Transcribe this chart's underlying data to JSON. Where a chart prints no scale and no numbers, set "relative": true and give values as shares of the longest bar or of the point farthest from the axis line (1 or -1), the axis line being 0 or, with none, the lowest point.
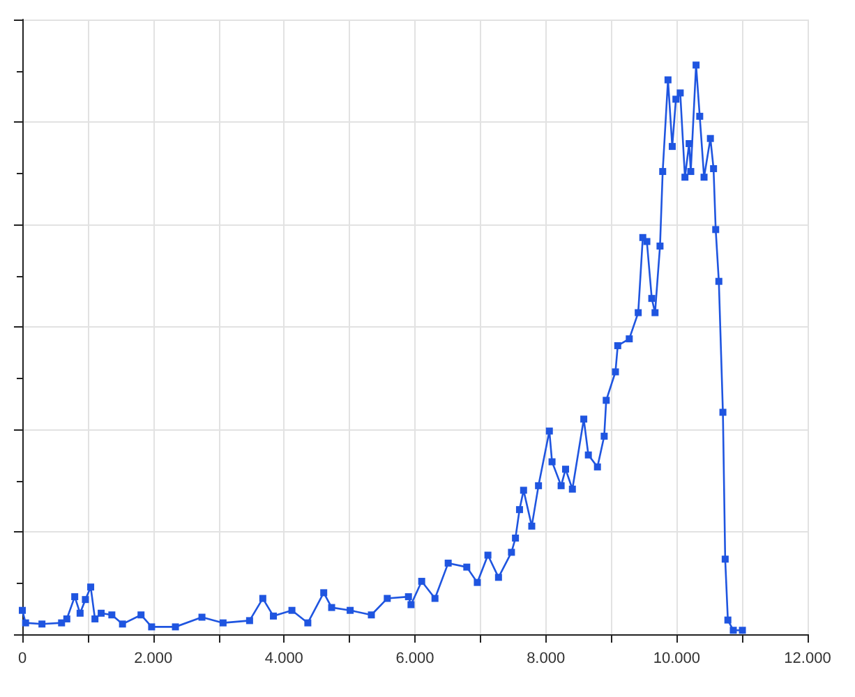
{
  "chart_data": {
    "type": "line",
    "relative": true,
    "marker": "square",
    "grid": true,
    "tick_labels": "x",
    "xlim": [
      0,
      12000
    ],
    "xticks": [
      {
        "value": 0,
        "label": "0"
      },
      {
        "value": 1000,
        "label": null
      },
      {
        "value": 2000,
        "label": "2.000"
      },
      {
        "value": 3000,
        "label": null
      },
      {
        "value": 4000,
        "label": "4.000"
      },
      {
        "value": 5000,
        "label": null
      },
      {
        "value": 6000,
        "label": "6.000"
      },
      {
        "value": 7000,
        "label": null
      },
      {
        "value": 8000,
        "label": "8.000"
      },
      {
        "value": 9000,
        "label": null
      },
      {
        "value": 10000,
        "label": "10.000"
      },
      {
        "value": 11000,
        "label": null
      },
      {
        "value": 12000,
        "label": "12.000"
      }
    ],
    "series": [
      {
        "color": "#1f55e0",
        "x": [
          0,
          50,
          300,
          600,
          680,
          801,
          883,
          964,
          1045,
          1110,
          1205,
          1368,
          1531,
          1814,
          1976,
          2340,
          2745,
          3068,
          3473,
          3675,
          3837,
          4120,
          4363,
          4606,
          4727,
          5010,
          5334,
          5577,
          5901,
          5940,
          6103,
          6306,
          6508,
          6792,
          6953,
          7115,
          7277,
          7475,
          7536,
          7598,
          7660,
          7785,
          7888,
          8054,
          8095,
          8234,
          8302,
          8406,
          8580,
          8650,
          8789,
          8892,
          8923,
          9064,
          9099,
          9275,
          9412,
          9482,
          9544,
          9619,
          9669,
          9745,
          9786,
          9867,
          9932,
          9988,
          10054,
          10126,
          10190,
          10215,
          10296,
          10352,
          10418,
          10515,
          10563,
          10596,
          10644,
          10706,
          10741,
          10782,
          10865,
          11004
        ],
        "values": [
          0.042,
          0.02,
          0.018,
          0.02,
          0.027,
          0.066,
          0.037,
          0.061,
          0.083,
          0.027,
          0.037,
          0.034,
          0.018,
          0.034,
          0.013,
          0.013,
          0.03,
          0.02,
          0.024,
          0.063,
          0.032,
          0.042,
          0.02,
          0.073,
          0.047,
          0.042,
          0.034,
          0.063,
          0.066,
          0.052,
          0.093,
          0.063,
          0.125,
          0.118,
          0.091,
          0.139,
          0.1,
          0.144,
          0.169,
          0.219,
          0.253,
          0.19,
          0.261,
          0.357,
          0.303,
          0.261,
          0.29,
          0.255,
          0.378,
          0.315,
          0.294,
          0.348,
          0.411,
          0.461,
          0.507,
          0.519,
          0.565,
          0.697,
          0.69,
          0.59,
          0.565,
          0.682,
          0.813,
          0.974,
          0.857,
          0.94,
          0.951,
          0.803,
          0.862,
          0.813,
          1,
          0.91,
          0.803,
          0.871,
          0.818,
          0.711,
          0.62,
          0.39,
          0.132,
          0.025,
          0.007,
          0.007
        ]
      }
    ]
  }
}
